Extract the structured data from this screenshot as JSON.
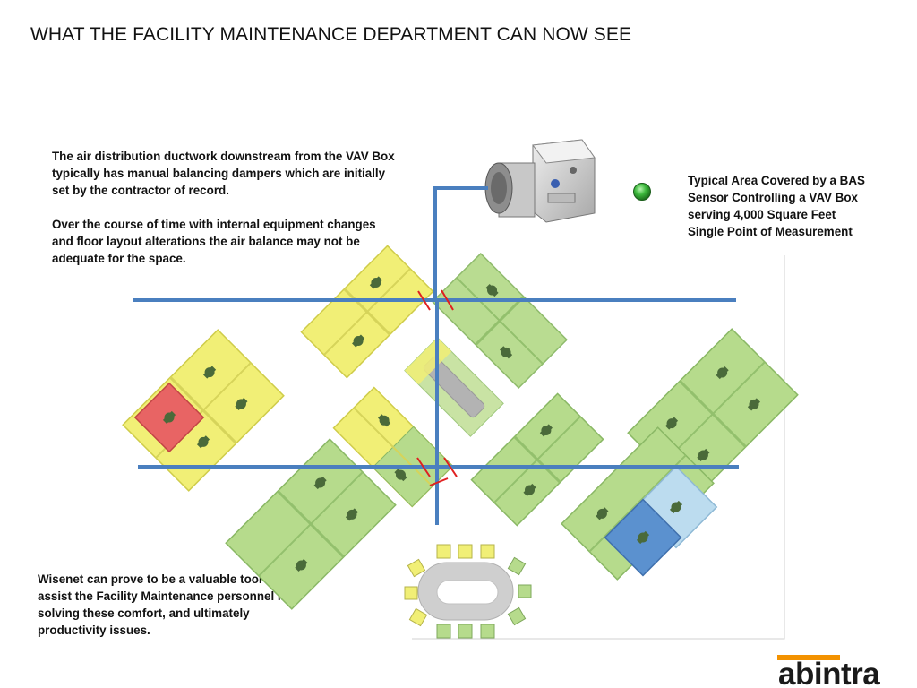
{
  "title": "WHAT THE FACILITY MAINTENANCE DEPARTMENT CAN NOW SEE",
  "description": {
    "paragraph1": "The air distribution ductwork downstream from the VAV Box typically has manual balancing dampers which are initially set by the contractor of record.",
    "paragraph2": "Over the course of time with internal equipment changes and floor layout alterations the air balance may not be adequate for the space."
  },
  "legend": {
    "line1": "Typical Area Covered by a BAS",
    "line2": "Sensor Controlling a VAV Box",
    "line3": "serving 4,000 Square Feet",
    "line4": "Single Point of Measurement",
    "indicator_color": "#3cb83c"
  },
  "footer_note": "Wisenet can prove to be a valuable tool to assist  the  Facility  Maintenance personnel in solving these comfort,  and ultimately productivity issues.",
  "logo": {
    "text": "abintra",
    "text_color": "#1a1a1a",
    "accent_color": "#f39200"
  },
  "colors": {
    "duct": "#4a7fbf",
    "damper": "#e02020",
    "zone_green": "#b6db8c",
    "zone_yellow": "#f1ef76",
    "zone_red": "#e86464",
    "zone_light_blue": "#bcdcef",
    "zone_blue": "#5b91cf",
    "table": "#cfcfcf"
  }
}
